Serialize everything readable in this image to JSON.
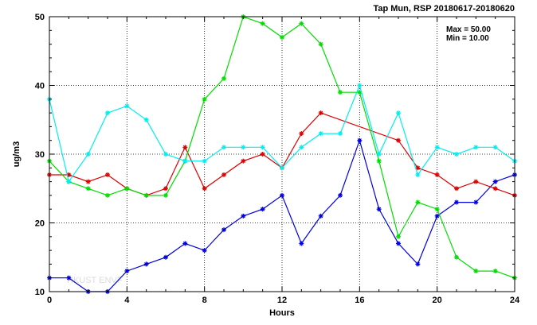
{
  "chart_data": {
    "type": "line",
    "title": "Tap Mun, RSP 20180617-20180620",
    "xlabel": "Hours",
    "ylabel": "ug/m3",
    "xlim": [
      0,
      24
    ],
    "ylim": [
      10,
      50
    ],
    "xticks": [
      0,
      4,
      8,
      12,
      16,
      20,
      24
    ],
    "yticks": [
      10,
      20,
      30,
      40,
      50
    ],
    "grid": true,
    "max_label": "Max = 50.00",
    "min_label": "Min = 10.00",
    "watermark": "HKUST ENVF",
    "series": [
      {
        "color": "#0000dd",
        "points": [
          [
            0,
            12
          ],
          [
            1,
            12
          ],
          [
            2,
            10
          ],
          [
            3,
            10
          ],
          [
            4,
            13
          ],
          [
            5,
            14
          ],
          [
            6,
            15
          ],
          [
            7,
            17
          ],
          [
            8,
            16
          ],
          [
            9,
            19
          ],
          [
            10,
            21
          ],
          [
            11,
            22
          ],
          [
            12,
            24
          ],
          [
            13,
            17
          ],
          [
            14,
            21
          ],
          [
            15,
            24
          ],
          [
            16,
            32
          ],
          [
            17,
            22
          ],
          [
            18,
            17
          ],
          [
            19,
            14
          ],
          [
            20,
            21
          ],
          [
            21,
            23
          ],
          [
            22,
            23
          ],
          [
            23,
            26
          ],
          [
            24,
            27
          ]
        ]
      },
      {
        "color": "#dd0000",
        "points": [
          [
            0,
            27
          ],
          [
            1,
            27
          ],
          [
            2,
            26
          ],
          [
            3,
            27
          ],
          [
            4,
            25
          ],
          [
            5,
            24
          ],
          [
            6,
            25
          ],
          [
            7,
            31
          ],
          [
            8,
            25
          ],
          [
            9,
            27
          ],
          [
            10,
            29
          ],
          [
            11,
            30
          ],
          [
            12,
            28
          ],
          [
            13,
            33
          ],
          [
            14,
            36
          ],
          [
            18,
            32
          ],
          [
            19,
            28
          ],
          [
            20,
            27
          ],
          [
            21,
            25
          ],
          [
            22,
            26
          ],
          [
            23,
            25
          ],
          [
            24,
            24
          ]
        ]
      },
      {
        "color": "#00dd00",
        "points": [
          [
            0,
            29
          ],
          [
            1,
            26
          ],
          [
            2,
            25
          ],
          [
            3,
            24
          ],
          [
            4,
            25
          ],
          [
            5,
            24
          ],
          [
            6,
            24
          ],
          [
            7,
            29
          ],
          [
            8,
            38
          ],
          [
            9,
            41
          ],
          [
            10,
            50
          ],
          [
            11,
            49
          ],
          [
            12,
            47
          ],
          [
            13,
            49
          ],
          [
            14,
            46
          ],
          [
            15,
            39
          ],
          [
            16,
            39
          ],
          [
            17,
            29
          ],
          [
            18,
            18
          ],
          [
            19,
            23
          ],
          [
            20,
            22
          ],
          [
            21,
            15
          ],
          [
            22,
            13
          ],
          [
            23,
            13
          ],
          [
            24,
            12
          ]
        ]
      },
      {
        "color": "#00eeee",
        "points": [
          [
            0,
            38
          ],
          [
            1,
            26
          ],
          [
            2,
            30
          ],
          [
            3,
            36
          ],
          [
            4,
            37
          ],
          [
            5,
            35
          ],
          [
            6,
            30
          ],
          [
            7,
            29
          ],
          [
            8,
            29
          ],
          [
            9,
            31
          ],
          [
            10,
            31
          ],
          [
            11,
            31
          ],
          [
            12,
            28
          ],
          [
            13,
            31
          ],
          [
            14,
            33
          ],
          [
            15,
            33
          ],
          [
            16,
            40
          ],
          [
            17,
            30
          ],
          [
            18,
            36
          ],
          [
            19,
            27
          ],
          [
            20,
            31
          ],
          [
            21,
            30
          ],
          [
            22,
            31
          ],
          [
            23,
            31
          ],
          [
            24,
            29
          ]
        ]
      }
    ]
  }
}
